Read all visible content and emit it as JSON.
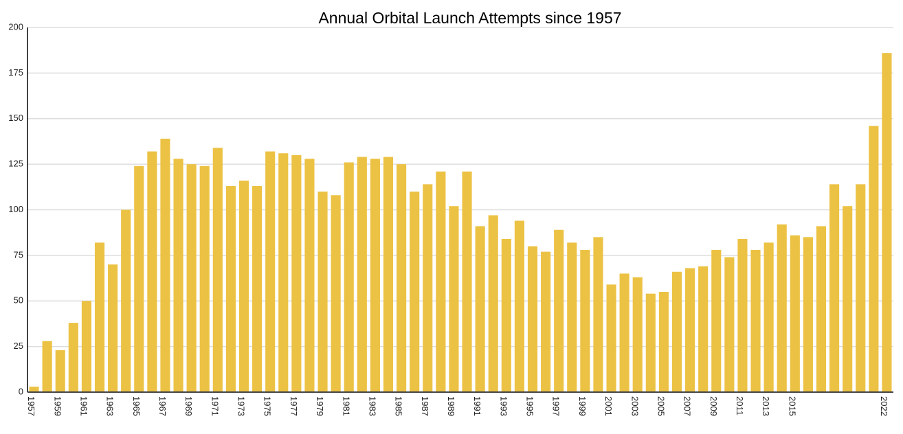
{
  "chart_data": {
    "type": "bar",
    "title": "Annual Orbital Launch Attempts since 1957",
    "categories": [
      "1957",
      null,
      "1959",
      null,
      "1961",
      null,
      "1963",
      null,
      "1965",
      null,
      "1967",
      null,
      "1969",
      null,
      "1971",
      null,
      "1973",
      null,
      "1975",
      null,
      "1977",
      null,
      "1979",
      null,
      "1981",
      null,
      "1983",
      null,
      "1985",
      null,
      "1987",
      null,
      "1989",
      null,
      "1991",
      null,
      "1993",
      null,
      "1995",
      null,
      "1997",
      null,
      "1999",
      null,
      "2001",
      null,
      "2003",
      null,
      "2005",
      null,
      "2007",
      null,
      "2009",
      null,
      "2011",
      null,
      "2013",
      null,
      "2015",
      null,
      null,
      null,
      null,
      null,
      null,
      "2022"
    ],
    "values": [
      3,
      28,
      23,
      38,
      50,
      82,
      70,
      100,
      124,
      132,
      139,
      128,
      125,
      124,
      134,
      113,
      116,
      113,
      132,
      131,
      130,
      128,
      110,
      108,
      126,
      129,
      128,
      129,
      125,
      110,
      114,
      121,
      102,
      121,
      91,
      97,
      84,
      94,
      80,
      77,
      89,
      82,
      78,
      85,
      59,
      65,
      63,
      54,
      55,
      66,
      68,
      69,
      78,
      74,
      84,
      78,
      82,
      92,
      86,
      85,
      91,
      114,
      102,
      114,
      146,
      186
    ],
    "color": "#ecc244",
    "ylim": [
      0,
      200
    ],
    "yticks": [
      0,
      25,
      50,
      75,
      100,
      125,
      150,
      175,
      200
    ],
    "grid": true
  }
}
